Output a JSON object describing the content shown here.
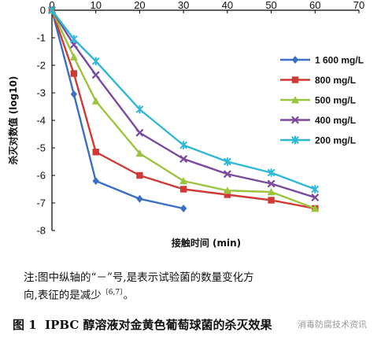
{
  "chart_data": {
    "type": "line",
    "xlabel": "接触时间 (min)",
    "ylabel": "杀灭对数值 (log10)",
    "xlim": [
      0,
      70
    ],
    "ylim": [
      -8,
      0
    ],
    "xticks": [
      "0",
      "10",
      "20",
      "30",
      "40",
      "50",
      "60",
      "70"
    ],
    "yticks": [
      "0",
      "-1",
      "-2",
      "-3",
      "-4",
      "-5",
      "-6",
      "-7",
      "-8"
    ],
    "legend_position": "right",
    "series": [
      {
        "name": "1 600 mg/L",
        "color": "#3a6fc4",
        "marker": "diamond",
        "x": [
          0,
          5,
          10,
          20,
          30
        ],
        "y": [
          0,
          -3.05,
          -6.2,
          -6.85,
          -7.2
        ]
      },
      {
        "name": "800 mg/L",
        "color": "#cf3a36",
        "marker": "square",
        "x": [
          0,
          5,
          10,
          20,
          30,
          40,
          50,
          60
        ],
        "y": [
          0,
          -2.3,
          -5.15,
          -6.0,
          -6.5,
          -6.7,
          -6.9,
          -7.2
        ]
      },
      {
        "name": "500 mg/L",
        "color": "#9cc43c",
        "marker": "triangle",
        "x": [
          0,
          5,
          10,
          20,
          30,
          40,
          50,
          60
        ],
        "y": [
          0,
          -1.7,
          -3.3,
          -5.2,
          -6.2,
          -6.55,
          -6.6,
          -7.2
        ]
      },
      {
        "name": "400 mg/L",
        "color": "#7a4a9e",
        "marker": "x",
        "x": [
          0,
          5,
          10,
          20,
          30,
          40,
          50,
          60
        ],
        "y": [
          0,
          -1.25,
          -2.35,
          -4.45,
          -5.4,
          -5.95,
          -6.3,
          -6.8
        ]
      },
      {
        "name": "200 mg/L",
        "color": "#2fb7d6",
        "marker": "star",
        "x": [
          0,
          5,
          10,
          20,
          30,
          40,
          50,
          60
        ],
        "y": [
          0,
          -1.05,
          -1.85,
          -3.6,
          -4.9,
          -5.5,
          -5.9,
          -6.5
        ]
      }
    ]
  },
  "note": {
    "line1": "注:图中纵轴的“－”号,是表示试验菌的数量变化方",
    "line2": "向,表征的是减少",
    "ref": "〔6,7〕",
    "line2_end": "。"
  },
  "caption": {
    "label": "图 1",
    "text": "IPBC 醇溶液对金黄色葡萄球菌的杀灭效果"
  },
  "watermark": "消毒防腐技术资讯"
}
